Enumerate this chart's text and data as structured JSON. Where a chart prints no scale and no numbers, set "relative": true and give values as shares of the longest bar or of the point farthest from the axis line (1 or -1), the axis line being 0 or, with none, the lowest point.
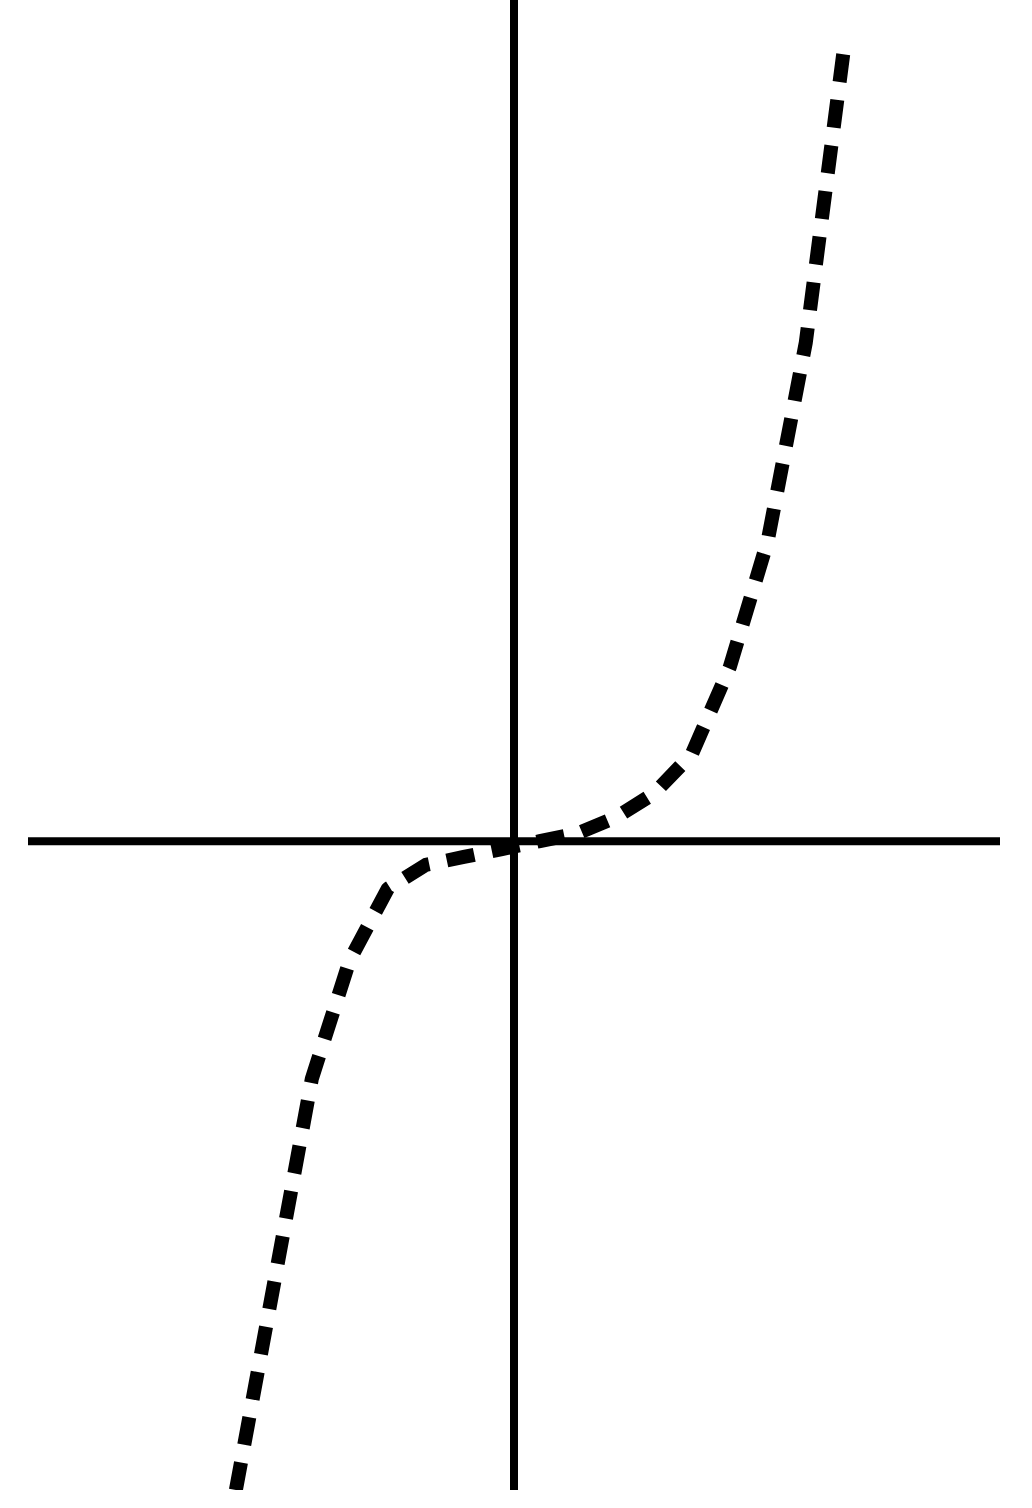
{
  "chart_data": {
    "type": "line",
    "relative": true,
    "line_style": "dashed",
    "categories": [
      null,
      null,
      null,
      null,
      null,
      null,
      null,
      null,
      null,
      null,
      null,
      null,
      null,
      null,
      null,
      null,
      null
    ],
    "series": [
      {
        "color": "#000000",
        "values": [
          -0.82,
          -0.56,
          -0.3,
          -0.15,
          -0.06,
          -0.03,
          -0.02,
          -0.01,
          0,
          0.01,
          0.03,
          0.06,
          0.11,
          0.22,
          0.38,
          0.63,
          1
        ]
      }
    ]
  }
}
